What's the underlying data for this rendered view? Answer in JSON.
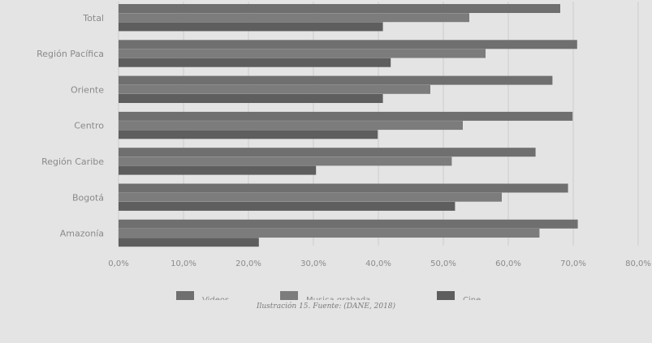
{
  "chart_data": {
    "type": "bar",
    "orientation": "horizontal",
    "categories": [
      "Total",
      "Región Pacífica",
      "Oriente",
      "Centro",
      "Región Caribe",
      "Bogotá",
      "Amazonía"
    ],
    "series": [
      {
        "name": "Videos",
        "color": "#6f6f6f",
        "values": [
          68.0,
          70.6,
          66.8,
          69.9,
          64.2,
          69.2,
          70.7
        ]
      },
      {
        "name": "Musica grabada",
        "color": "#7c7c7c",
        "values": [
          54.0,
          56.5,
          48.0,
          53.0,
          51.3,
          59.0,
          64.8
        ]
      },
      {
        "name": "Cine",
        "color": "#5e5e5e",
        "values": [
          40.7,
          41.9,
          40.7,
          39.9,
          30.4,
          51.8,
          21.6
        ]
      }
    ],
    "xlim": [
      0,
      80
    ],
    "xticks": [
      "0,0%",
      "10,0%",
      "20,0%",
      "30,0%",
      "40,0%",
      "50,0%",
      "60,0%",
      "70,0%",
      "80,0%"
    ],
    "grid": true,
    "legend_position": "bottom",
    "title": "",
    "xlabel": "",
    "ylabel": ""
  },
  "caption": "Ilustración 15. Fuente: (DANE, 2018)"
}
